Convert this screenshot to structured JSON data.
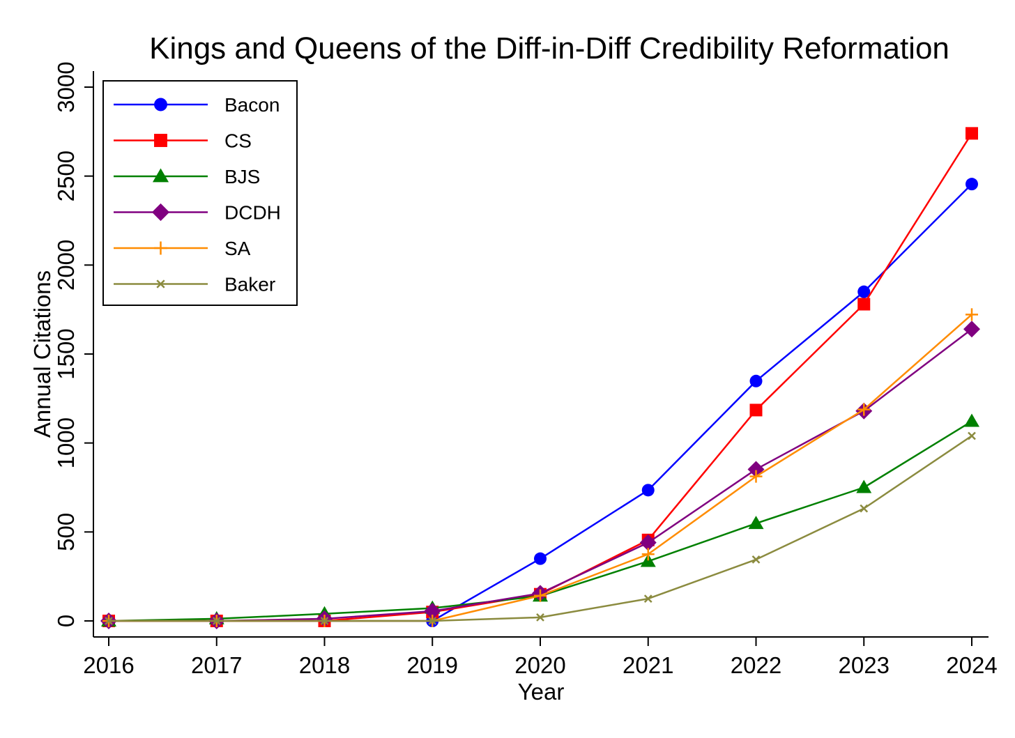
{
  "chart_data": {
    "type": "line",
    "title": "Kings and Queens of the Diff-in-Diff Credibility Reformation",
    "xlabel": "Year",
    "ylabel": "Annual Citations",
    "x": [
      "2016",
      "2017",
      "2018",
      "2019",
      "2020",
      "2021",
      "2022",
      "2023",
      "2024"
    ],
    "yticks": [
      "0",
      "500",
      "1000",
      "1500",
      "2000",
      "2500",
      "3000"
    ],
    "ylim": [
      0,
      3000
    ],
    "grid": false,
    "legend_position": "top-left",
    "series": [
      {
        "name": "Bacon",
        "color": "#0000ff",
        "marker": "circle",
        "values": [
          0,
          0,
          0,
          0,
          350,
          735,
          1348,
          1850,
          2455
        ]
      },
      {
        "name": "CS",
        "color": "#ff0000",
        "marker": "square",
        "values": [
          0,
          0,
          0,
          50,
          150,
          455,
          1185,
          1780,
          2740
        ]
      },
      {
        "name": "BJS",
        "color": "#008000",
        "marker": "triangle",
        "values": [
          0,
          12,
          40,
          72,
          140,
          335,
          548,
          750,
          1122
        ]
      },
      {
        "name": "DCDH",
        "color": "#800080",
        "marker": "diamond",
        "values": [
          0,
          0,
          12,
          55,
          155,
          440,
          852,
          1180,
          1640
        ]
      },
      {
        "name": "SA",
        "color": "#ff8c00",
        "marker": "plus",
        "values": [
          0,
          0,
          0,
          0,
          142,
          375,
          812,
          1188,
          1722
        ]
      },
      {
        "name": "Baker",
        "color": "#8b8b3f",
        "marker": "x",
        "values": [
          0,
          0,
          0,
          0,
          20,
          125,
          345,
          632,
          1040
        ]
      }
    ]
  }
}
